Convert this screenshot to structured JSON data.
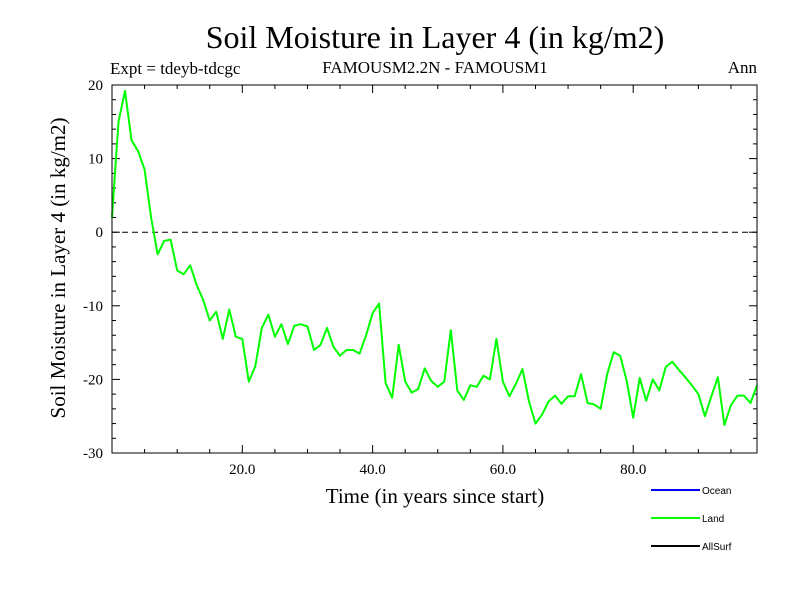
{
  "chart_data": {
    "type": "line",
    "title": "Soil Moisture in Layer 4 (in kg/m2)",
    "expt_label": "Expt = tdeyb-tdcgc",
    "subtitle": "FAMOUSM2.2N - FAMOUSM1",
    "period_label": "Ann",
    "xlabel": "Time (in years since start)",
    "ylabel": "Soil Moisture in Layer 4 (in kg/m2)",
    "xlim": [
      0,
      99
    ],
    "ylim": [
      -30,
      20
    ],
    "x_ticks": [
      20,
      40,
      60,
      80
    ],
    "x_tick_labels": [
      "20.0",
      "40.0",
      "60.0",
      "80.0"
    ],
    "y_ticks": [
      -30,
      -20,
      -10,
      0,
      10,
      20
    ],
    "y_tick_labels": [
      "-30",
      "-20",
      "-10",
      "0",
      "10",
      "20"
    ],
    "zero_line": true,
    "grid": false,
    "legend_position": "bottom-right",
    "legend": [
      {
        "name": "Ocean",
        "color": "#0000ff"
      },
      {
        "name": "Land",
        "color": "#00ff00"
      },
      {
        "name": "AllSurf",
        "color": "#000000"
      }
    ],
    "series": [
      {
        "name": "Land",
        "color": "#00ff00",
        "x": [
          0,
          1,
          2,
          3,
          4,
          5,
          6,
          7,
          8,
          9,
          10,
          11,
          12,
          13,
          14,
          15,
          16,
          17,
          18,
          19,
          20,
          21,
          22,
          23,
          24,
          25,
          26,
          27,
          28,
          29,
          30,
          31,
          32,
          33,
          34,
          35,
          36,
          37,
          38,
          39,
          40,
          41,
          42,
          43,
          44,
          45,
          46,
          47,
          48,
          49,
          50,
          51,
          52,
          53,
          54,
          55,
          56,
          57,
          58,
          59,
          60,
          61,
          62,
          63,
          64,
          65,
          66,
          67,
          68,
          69,
          70,
          71,
          72,
          73,
          74,
          75,
          76,
          77,
          78,
          79,
          80,
          81,
          82,
          83,
          84,
          85,
          86,
          87,
          88,
          89,
          90,
          91,
          92,
          93,
          94,
          95,
          96,
          97,
          98,
          99
        ],
        "y": [
          2,
          15,
          19.2,
          12.5,
          11,
          8.5,
          2,
          -3,
          -1.2,
          -1,
          -5.2,
          -5.7,
          -4.5,
          -7.2,
          -9.2,
          -12,
          -10.8,
          -14.5,
          -10.5,
          -14.2,
          -14.5,
          -20.3,
          -18.2,
          -13,
          -11.2,
          -14.2,
          -12.5,
          -15.2,
          -12.7,
          -12.5,
          -12.8,
          -16,
          -15.3,
          -13,
          -15.6,
          -16.8,
          -16,
          -16,
          -16.5,
          -14,
          -11,
          -9.7,
          -20.5,
          -22.5,
          -15.3,
          -20.3,
          -21.8,
          -21.3,
          -18.5,
          -20.2,
          -21,
          -20.3,
          -13.3,
          -21.5,
          -22.8,
          -20.8,
          -21,
          -19.5,
          -20,
          -14.5,
          -20.3,
          -22.3,
          -20.6,
          -18.6,
          -23,
          -26,
          -24.8,
          -23,
          -22.2,
          -23.3,
          -22.3,
          -22.3,
          -19.3,
          -23.2,
          -23.4,
          -24,
          -19.3,
          -16.3,
          -16.8,
          -20.2,
          -25.2,
          -19.8,
          -22.9,
          -20,
          -21.5,
          -18.3,
          -17.6,
          -18.7,
          -19.7,
          -20.8,
          -22,
          -25,
          -22.3,
          -19.7,
          -26.2,
          -23.5,
          -22.2,
          -22.2,
          -23.2,
          -20.8
        ]
      }
    ]
  }
}
